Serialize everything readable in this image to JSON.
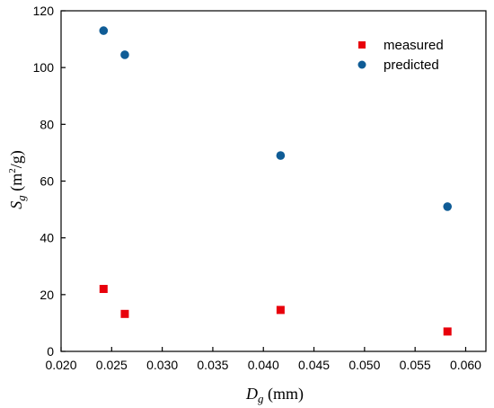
{
  "chart_data": {
    "type": "scatter",
    "xlabel": {
      "main": "D",
      "sub": "g",
      "unit": " (mm)"
    },
    "ylabel": {
      "main": "S",
      "sub": "g",
      "unit_pre": " (m",
      "sup": "2",
      "unit_post": "/g)"
    },
    "xlim": [
      0.02,
      0.062
    ],
    "ylim": [
      0,
      120
    ],
    "xticks": [
      "0.020",
      "0.025",
      "0.030",
      "0.035",
      "0.040",
      "0.045",
      "0.050",
      "0.055",
      "0.060"
    ],
    "yticks": [
      "0",
      "20",
      "40",
      "60",
      "80",
      "100",
      "120"
    ],
    "grid": false,
    "legend_position": "top-right",
    "series": [
      {
        "name": "measured",
        "marker": "square",
        "color": "#e8000b",
        "points": [
          {
            "x": 0.0242,
            "y": 22
          },
          {
            "x": 0.0263,
            "y": 13.2
          },
          {
            "x": 0.0417,
            "y": 14.6
          },
          {
            "x": 0.0582,
            "y": 7
          }
        ]
      },
      {
        "name": "predicted",
        "marker": "circle",
        "color": "#0f5c96",
        "points": [
          {
            "x": 0.0242,
            "y": 113
          },
          {
            "x": 0.0263,
            "y": 104.5
          },
          {
            "x": 0.0417,
            "y": 69
          },
          {
            "x": 0.0582,
            "y": 51
          }
        ]
      }
    ]
  }
}
